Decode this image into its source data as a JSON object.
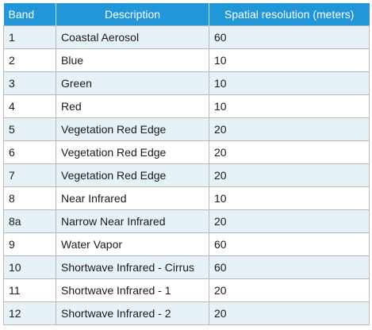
{
  "table": {
    "headers": [
      "Band",
      "Description",
      "Spatial resolution (meters)"
    ],
    "rows": [
      {
        "band": "1",
        "description": "Coastal Aerosol",
        "resolution": "60"
      },
      {
        "band": "2",
        "description": "Blue",
        "resolution": "10"
      },
      {
        "band": "3",
        "description": "Green",
        "resolution": "10"
      },
      {
        "band": "4",
        "description": "Red",
        "resolution": "10"
      },
      {
        "band": "5",
        "description": "Vegetation Red Edge",
        "resolution": "20"
      },
      {
        "band": "6",
        "description": "Vegetation Red Edge",
        "resolution": "20"
      },
      {
        "band": "7",
        "description": "Vegetation Red Edge",
        "resolution": "20"
      },
      {
        "band": "8",
        "description": "Near Infrared",
        "resolution": "10"
      },
      {
        "band": "8a",
        "description": "Narrow Near Infrared",
        "resolution": "20"
      },
      {
        "band": "9",
        "description": "Water Vapor",
        "resolution": "60"
      },
      {
        "band": "10",
        "description": "Shortwave Infrared - Cirrus",
        "resolution": "60"
      },
      {
        "band": "11",
        "description": "Shortwave Infrared - 1",
        "resolution": "20"
      },
      {
        "band": "12",
        "description": "Shortwave Infrared - 2",
        "resolution": "20"
      }
    ]
  },
  "colors": {
    "header_bg": "#2196d8",
    "header_text": "#ffffff",
    "row_shade": "#e7f1f8",
    "row_plain": "#ffffff",
    "grid": "#b9b9b9"
  }
}
